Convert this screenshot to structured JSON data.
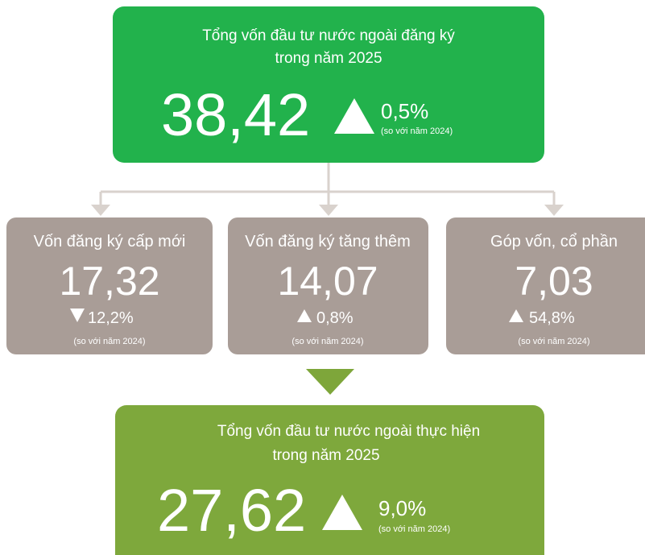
{
  "top": {
    "title_lines": [
      "Tổng vốn đầu tư nước ngoài đăng ký",
      "trong năm 2025"
    ],
    "value": "38,42",
    "change": "0,5%",
    "note": "(so với năm 2024)"
  },
  "components": [
    {
      "label": "Vốn đăng ký cấp mới",
      "value": "17,32",
      "change": "12,2%",
      "note": "(so với năm 2024)"
    },
    {
      "label": "Vốn đăng ký tăng thêm",
      "value": "14,07",
      "change": "0,8%",
      "note": "(so với năm 2024)"
    },
    {
      "label": "Góp vốn, cổ phần",
      "value": "7,03",
      "change": "54,8%",
      "note": "(so với năm 2024)"
    }
  ],
  "bottom": {
    "title_lines": [
      "Tổng vốn đầu tư nước ngoài thực hiện",
      "trong năm 2025"
    ],
    "value": "27,62",
    "change": "9,0%",
    "note": "(so với năm 2024)"
  }
}
